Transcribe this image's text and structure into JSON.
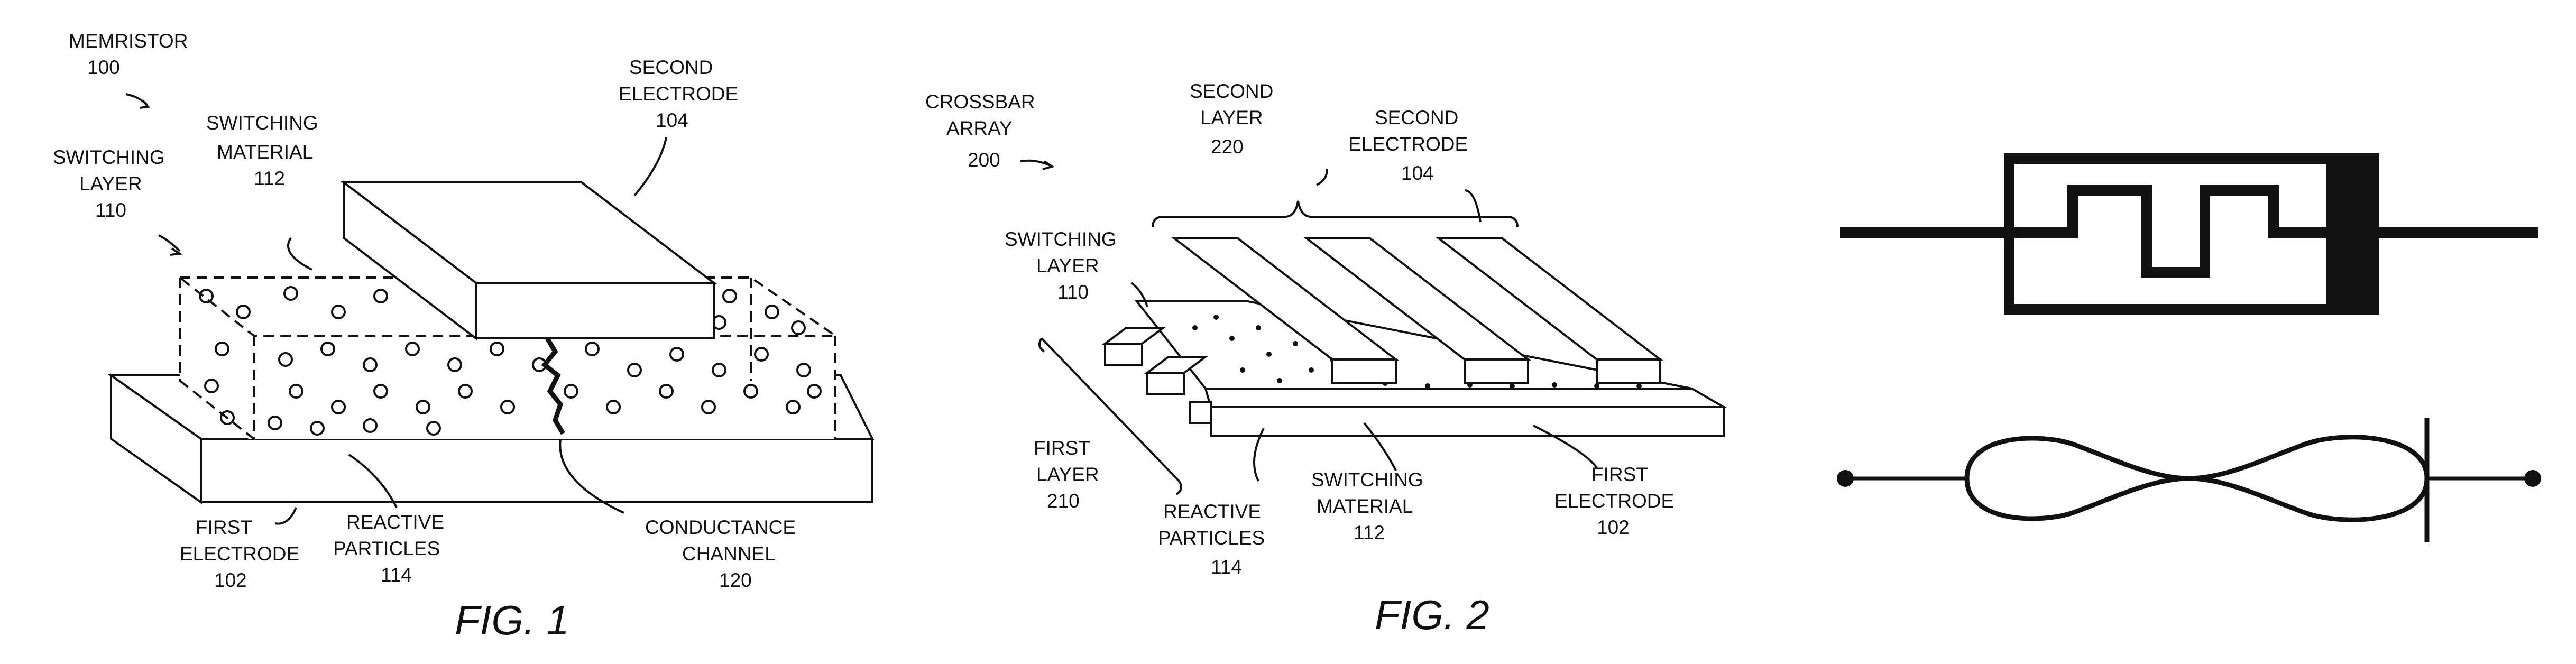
{
  "fig1": {
    "caption": "FIG. 1",
    "memristor": "MEMRISTOR",
    "memristor_num": "100",
    "switching_layer_l1": "SWITCHING",
    "switching_layer_l2": "LAYER",
    "switching_layer_num": "110",
    "switching_material_l1": "SWITCHING",
    "switching_material_l2": "MATERIAL",
    "switching_material_num": "112",
    "second_electrode_l1": "SECOND",
    "second_electrode_l2": "ELECTRODE",
    "second_electrode_num": "104",
    "first_electrode_l1": "FIRST",
    "first_electrode_l2": "ELECTRODE",
    "first_electrode_num": "102",
    "reactive_particles_l1": "REACTIVE",
    "reactive_particles_l2": "PARTICLES",
    "reactive_particles_num": "114",
    "conductance_channel_l1": "CONDUCTANCE",
    "conductance_channel_l2": "CHANNEL",
    "conductance_channel_num": "120"
  },
  "fig2": {
    "caption": "FIG. 2",
    "crossbar_l1": "CROSSBAR",
    "crossbar_l2": "ARRAY",
    "crossbar_num": "200",
    "second_layer_l1": "SECOND",
    "second_layer_l2": "LAYER",
    "second_layer_num": "220",
    "second_electrode_l1": "SECOND",
    "second_electrode_l2": "ELECTRODE",
    "second_electrode_num": "104",
    "switching_layer_l1": "SWITCHING",
    "switching_layer_l2": "LAYER",
    "switching_layer_num": "110",
    "first_layer_l1": "FIRST",
    "first_layer_l2": "LAYER",
    "first_layer_num": "210",
    "reactive_particles_l1": "REACTIVE",
    "reactive_particles_l2": "PARTICLES",
    "reactive_particles_num": "114",
    "switching_material_l1": "SWITCHING",
    "switching_material_l2": "MATERIAL",
    "switching_material_num": "112",
    "first_electrode_l1": "FIRST",
    "first_electrode_l2": "ELECTRODE",
    "first_electrode_num": "102"
  },
  "symbols": {
    "top": "memristor-box-symbol",
    "bottom": "memristor-pinched-hysteresis-symbol"
  },
  "colors": {
    "ink": "#111111",
    "paper": "#ffffff"
  }
}
